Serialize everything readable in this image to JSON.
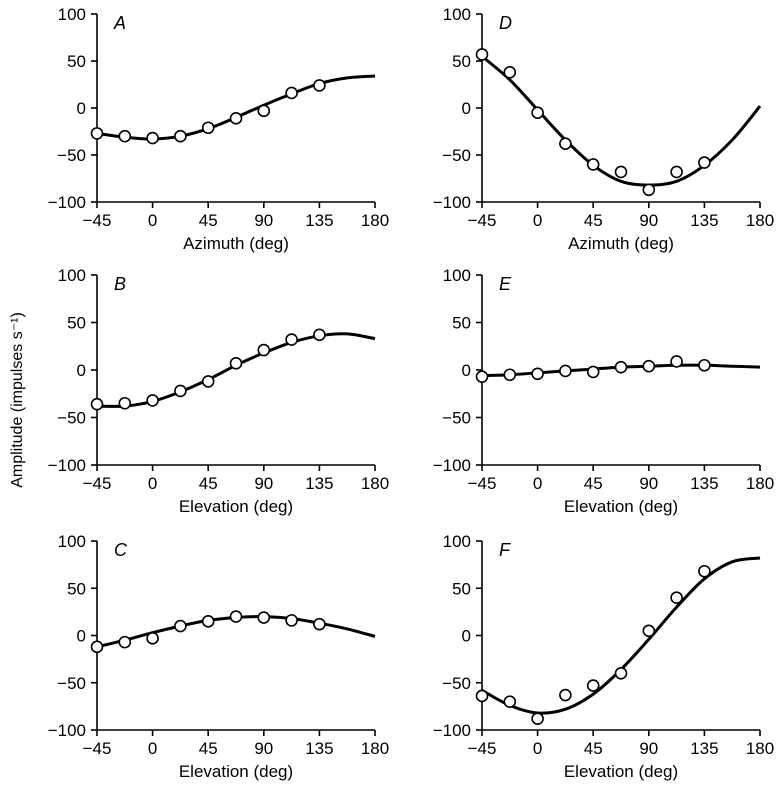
{
  "figure": {
    "ylabel": "Amplitude (impulses s⁻¹)"
  },
  "chart_data": [
    {
      "type": "scatter",
      "panel": "A",
      "xlabel": "Azimuth (deg)",
      "xticks": [
        -45,
        0,
        45,
        90,
        135,
        180
      ],
      "yticks": [
        -100,
        -50,
        0,
        50,
        100
      ],
      "xlim": [
        -45,
        180
      ],
      "ylim": [
        -100,
        100
      ],
      "points": {
        "x": [
          -45,
          -22.5,
          0,
          22.5,
          45,
          67.5,
          90,
          112.5,
          135
        ],
        "y": [
          -27,
          -30,
          -32,
          -30,
          -21,
          -11,
          -3,
          16,
          24
        ]
      },
      "fit": {
        "x": [
          -45,
          -22.5,
          0,
          22.5,
          45,
          67.5,
          90,
          112.5,
          135,
          157.5,
          180
        ],
        "y": [
          -27,
          -31,
          -33,
          -30,
          -22,
          -10,
          3,
          15,
          26,
          32,
          34
        ]
      }
    },
    {
      "type": "scatter",
      "panel": "D",
      "xlabel": "Azimuth (deg)",
      "xticks": [
        -45,
        0,
        45,
        90,
        135,
        180
      ],
      "yticks": [
        -100,
        -50,
        0,
        50,
        100
      ],
      "xlim": [
        -45,
        180
      ],
      "ylim": [
        -100,
        100
      ],
      "points": {
        "x": [
          -45,
          -22.5,
          0,
          22.5,
          45,
          67.5,
          90,
          112.5,
          135
        ],
        "y": [
          57,
          38,
          -5,
          -38,
          -60,
          -68,
          -87,
          -68,
          -58
        ]
      },
      "fit": {
        "x": [
          -45,
          -22.5,
          0,
          22.5,
          45,
          67.5,
          90,
          112.5,
          135,
          157.5,
          180
        ],
        "y": [
          55,
          30,
          -2,
          -34,
          -61,
          -78,
          -82,
          -78,
          -61,
          -34,
          2
        ]
      }
    },
    {
      "type": "scatter",
      "panel": "B",
      "xlabel": "Elevation (deg)",
      "xticks": [
        -45,
        0,
        45,
        90,
        135,
        180
      ],
      "yticks": [
        -100,
        -50,
        0,
        50,
        100
      ],
      "xlim": [
        -45,
        180
      ],
      "ylim": [
        -100,
        100
      ],
      "points": {
        "x": [
          -45,
          -22.5,
          0,
          22.5,
          45,
          67.5,
          90,
          112.5,
          135
        ],
        "y": [
          -36,
          -35,
          -32,
          -22,
          -12,
          7,
          21,
          32,
          37
        ]
      },
      "fit": {
        "x": [
          -45,
          -22.5,
          0,
          22.5,
          45,
          67.5,
          90,
          112.5,
          135,
          157.5,
          180
        ],
        "y": [
          -38,
          -38,
          -33,
          -23,
          -10,
          5,
          18,
          29,
          36,
          38,
          33
        ]
      }
    },
    {
      "type": "scatter",
      "panel": "E",
      "xlabel": "Elevation (deg)",
      "xticks": [
        -45,
        0,
        45,
        90,
        135,
        180
      ],
      "yticks": [
        -100,
        -50,
        0,
        50,
        100
      ],
      "xlim": [
        -45,
        180
      ],
      "ylim": [
        -100,
        100
      ],
      "points": {
        "x": [
          -45,
          -22.5,
          0,
          22.5,
          45,
          67.5,
          90,
          112.5,
          135
        ],
        "y": [
          -7,
          -5,
          -4,
          -1,
          -2,
          3,
          4,
          9,
          5
        ]
      },
      "fit": {
        "x": [
          -45,
          -22.5,
          0,
          22.5,
          45,
          67.5,
          90,
          112.5,
          135,
          157.5,
          180
        ],
        "y": [
          -6,
          -5,
          -3,
          -1,
          1,
          3,
          4,
          5,
          5,
          4,
          3
        ]
      }
    },
    {
      "type": "scatter",
      "panel": "C",
      "xlabel": "Elevation (deg)",
      "xticks": [
        -45,
        0,
        45,
        90,
        135,
        180
      ],
      "yticks": [
        -100,
        -50,
        0,
        50,
        100
      ],
      "xlim": [
        -45,
        180
      ],
      "ylim": [
        -100,
        100
      ],
      "points": {
        "x": [
          -45,
          -22.5,
          0,
          22.5,
          45,
          67.5,
          90,
          112.5,
          135
        ],
        "y": [
          -12,
          -7,
          -3,
          10,
          15,
          20,
          19,
          16,
          12
        ]
      },
      "fit": {
        "x": [
          -45,
          -22.5,
          0,
          22.5,
          45,
          67.5,
          90,
          112.5,
          135,
          157.5,
          180
        ],
        "y": [
          -12,
          -5,
          3,
          10,
          16,
          19,
          20,
          18,
          13,
          7,
          -1
        ]
      }
    },
    {
      "type": "scatter",
      "panel": "F",
      "xlabel": "Elevation (deg)",
      "xticks": [
        -45,
        0,
        45,
        90,
        135,
        180
      ],
      "yticks": [
        -100,
        -50,
        0,
        50,
        100
      ],
      "xlim": [
        -45,
        180
      ],
      "ylim": [
        -100,
        100
      ],
      "points": {
        "x": [
          -45,
          -22.5,
          0,
          22.5,
          45,
          67.5,
          90,
          112.5,
          135
        ],
        "y": [
          -64,
          -70,
          -88,
          -63,
          -53,
          -40,
          5,
          40,
          68
        ]
      },
      "fit": {
        "x": [
          -45,
          -22.5,
          0,
          22.5,
          45,
          67.5,
          90,
          112.5,
          135,
          157.5,
          180
        ],
        "y": [
          -58,
          -74,
          -82,
          -78,
          -62,
          -36,
          -4,
          30,
          60,
          78,
          82
        ]
      }
    }
  ]
}
